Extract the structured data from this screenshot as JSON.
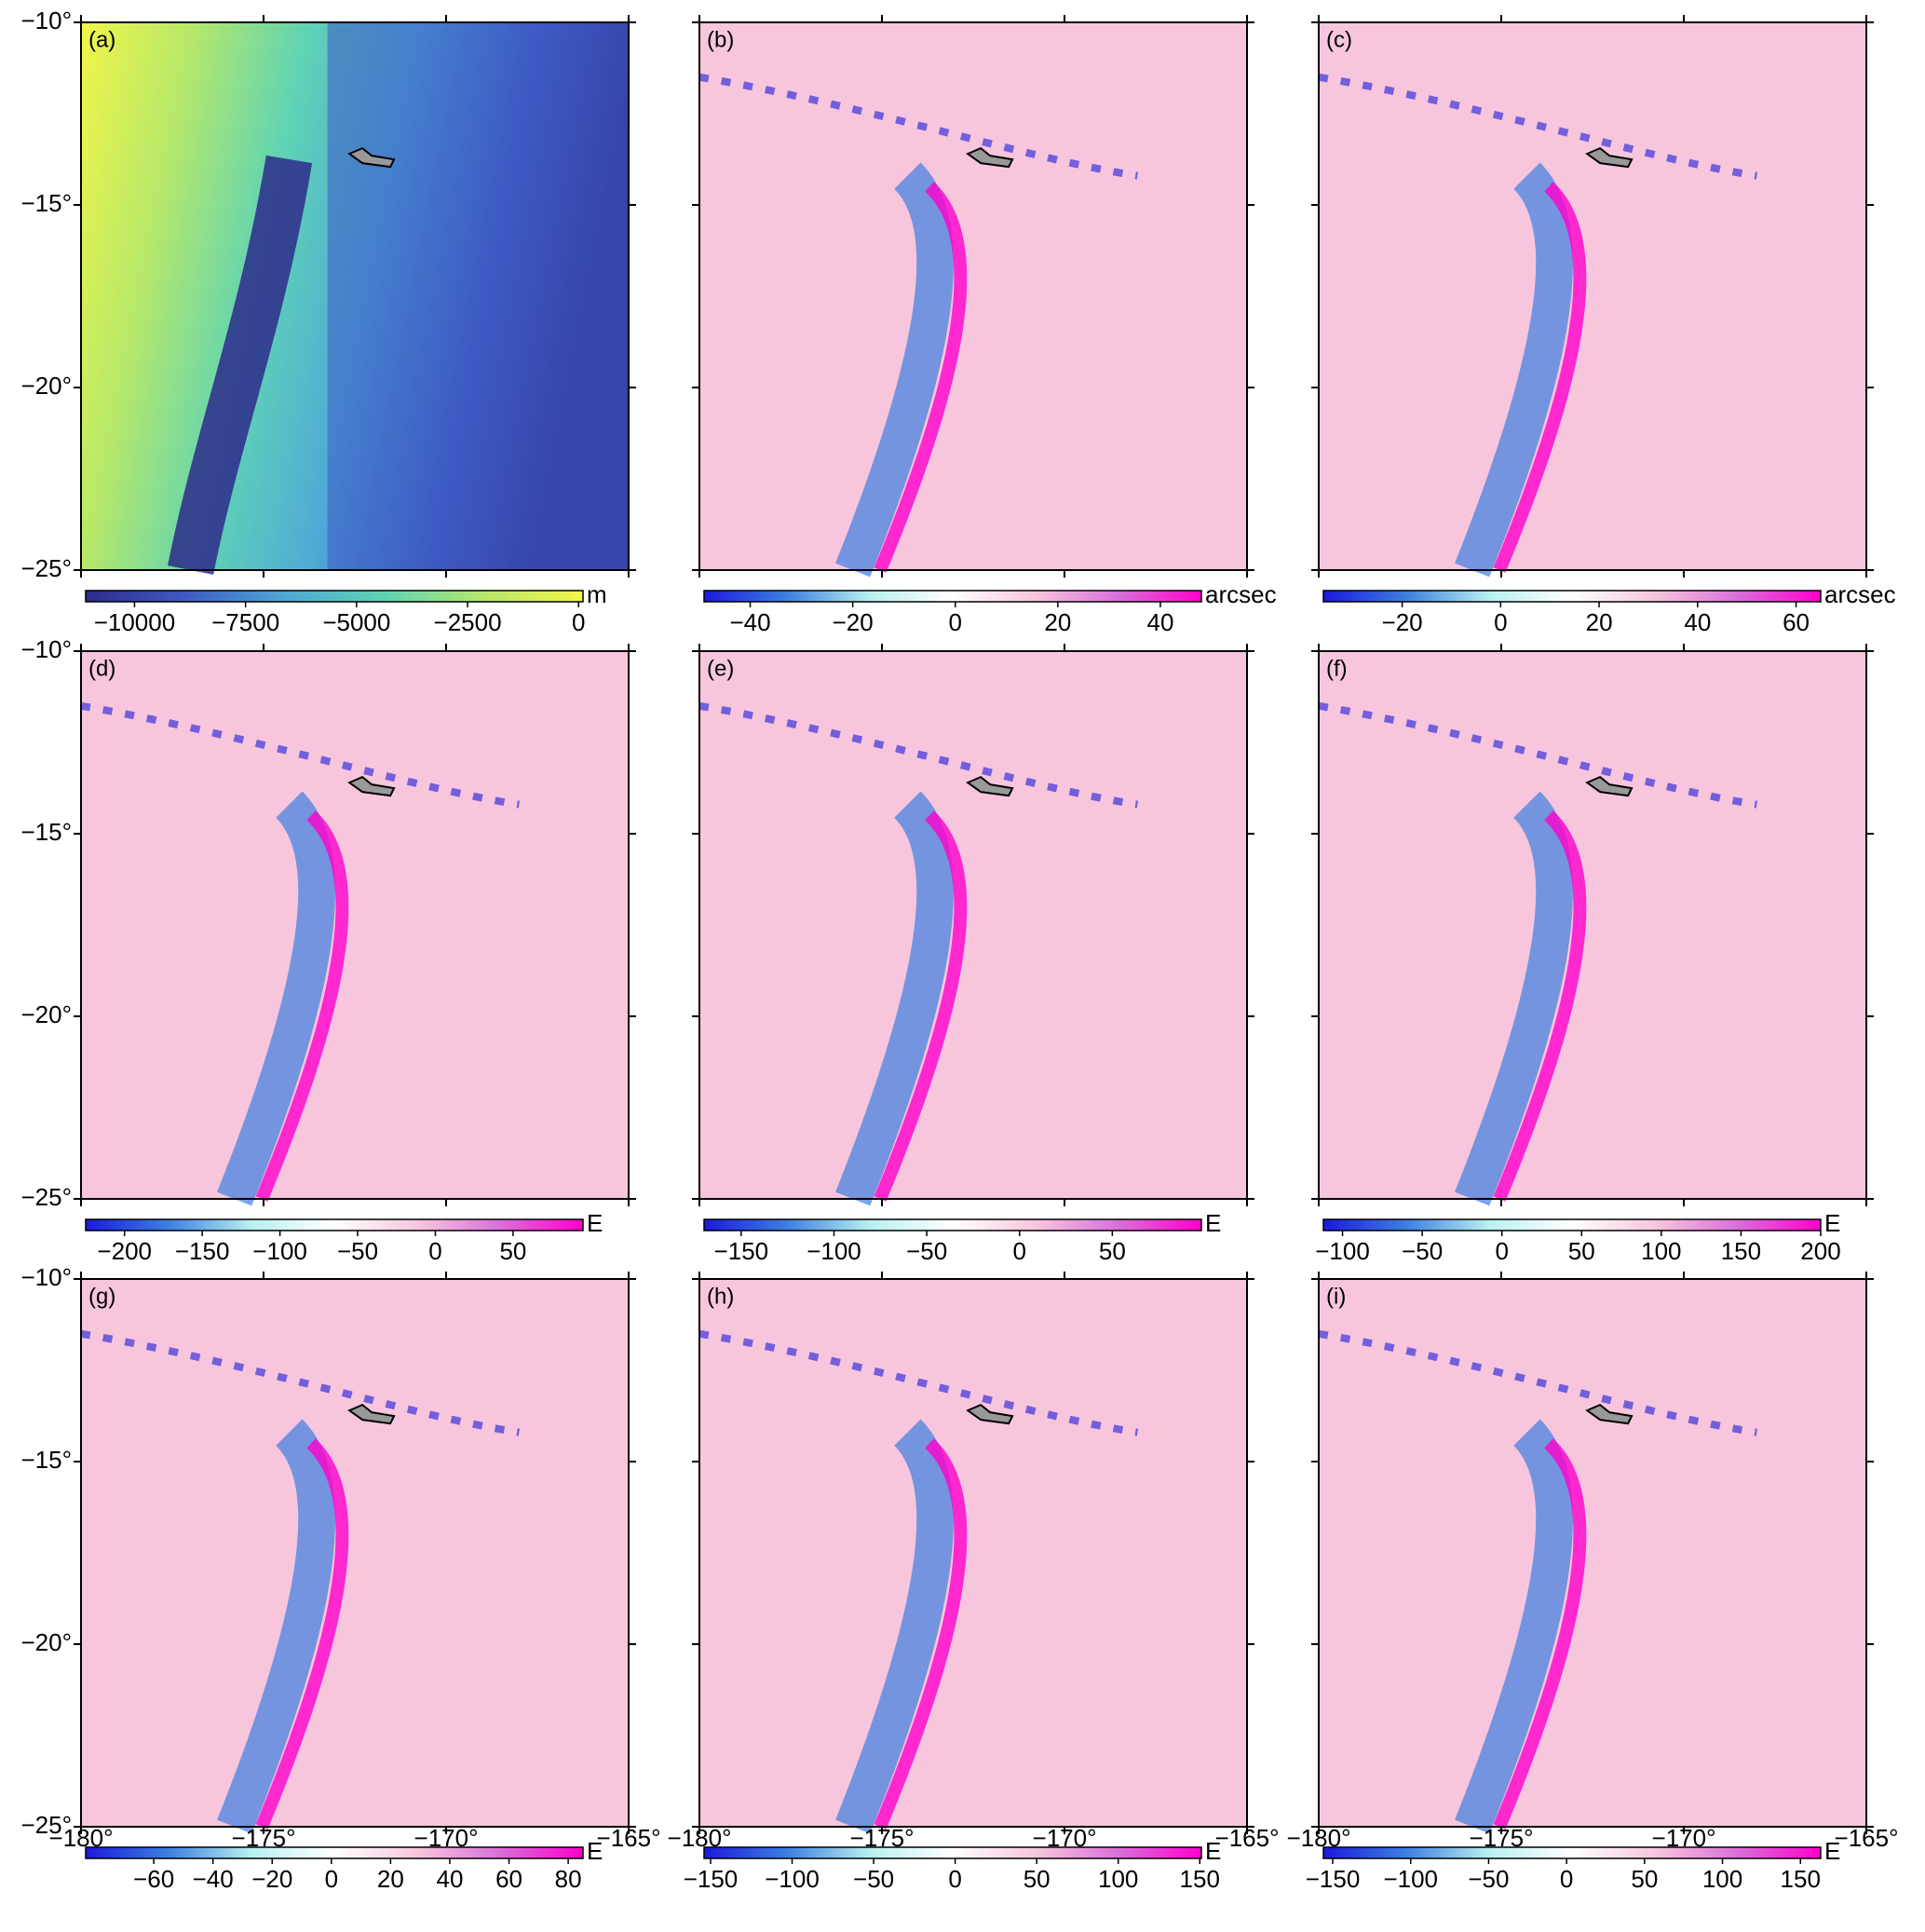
{
  "maps": {
    "ylim": [
      -25,
      -10
    ],
    "xlim": [
      -180,
      -165
    ],
    "lat_ticks": [
      {
        "value": -10,
        "label": "−10°"
      },
      {
        "value": -15,
        "label": "−15°"
      },
      {
        "value": -20,
        "label": "−20°"
      },
      {
        "value": -25,
        "label": "−25°"
      }
    ],
    "lon_ticks": [
      {
        "value": -180,
        "label": "−180°"
      },
      {
        "value": -175,
        "label": "−175°"
      },
      {
        "value": -170,
        "label": "−170°"
      },
      {
        "value": -165,
        "label": "−165°"
      }
    ],
    "panels": [
      {
        "label": "(a)",
        "colorbar": {
          "unit": "m",
          "lim": [
            -11100,
            100
          ],
          "colors": [
            "#2d2a8a",
            "#3e5bc4",
            "#4fa9d6",
            "#5fd3b5",
            "#b5e86a",
            "#f2f54a"
          ],
          "ticks": [
            {
              "value": -10000,
              "label": "−10000"
            },
            {
              "value": -7500,
              "label": "−7500"
            },
            {
              "value": -5000,
              "label": "−5000"
            },
            {
              "value": -2500,
              "label": "−2500"
            },
            0
          ]
        }
      },
      {
        "label": "(b)",
        "colorbar": {
          "unit": "arcsec",
          "lim": [
            -49,
            48
          ],
          "colors": [
            "#1a1adb",
            "#3d7fe0",
            "#b8f0f0",
            "#ffffff",
            "#f7c6dd",
            "#d96fd9",
            "#ff00cc"
          ],
          "ticks": [
            {
              "value": -40,
              "label": "−40"
            },
            {
              "value": -20,
              "label": "−20"
            },
            0,
            20,
            40
          ]
        }
      },
      {
        "label": "(c)",
        "colorbar": {
          "unit": "arcsec",
          "lim": [
            -36,
            65
          ],
          "colors": [
            "#1a1adb",
            "#3d7fe0",
            "#b8f0f0",
            "#ffffff",
            "#f7c6dd",
            "#d96fd9",
            "#ff00cc"
          ],
          "ticks": [
            {
              "value": -20,
              "label": "−20"
            },
            0,
            20,
            40,
            60
          ]
        }
      },
      {
        "label": "(d)",
        "colorbar": {
          "unit": "E",
          "lim": [
            -225,
            95
          ],
          "colors": [
            "#1a1adb",
            "#3d7fe0",
            "#b8f0f0",
            "#ffffff",
            "#f7c6dd",
            "#d96fd9",
            "#ff00cc"
          ],
          "ticks": [
            {
              "value": -200,
              "label": "−200"
            },
            {
              "value": -150,
              "label": "−150"
            },
            {
              "value": -100,
              "label": "−100"
            },
            {
              "value": -50,
              "label": "−50"
            },
            0,
            50
          ]
        }
      },
      {
        "label": "(e)",
        "colorbar": {
          "unit": "E",
          "lim": [
            -170,
            98
          ],
          "colors": [
            "#1a1adb",
            "#3d7fe0",
            "#b8f0f0",
            "#ffffff",
            "#f7c6dd",
            "#d96fd9",
            "#ff00cc"
          ],
          "ticks": [
            {
              "value": -150,
              "label": "−150"
            },
            {
              "value": -100,
              "label": "−100"
            },
            {
              "value": -50,
              "label": "−50"
            },
            0,
            50
          ]
        }
      },
      {
        "label": "(f)",
        "colorbar": {
          "unit": "E",
          "lim": [
            -112,
            200
          ],
          "colors": [
            "#1a1adb",
            "#3d7fe0",
            "#b8f0f0",
            "#ffffff",
            "#f7c6dd",
            "#d96fd9",
            "#ff00cc"
          ],
          "ticks": [
            {
              "value": -100,
              "label": "−100"
            },
            {
              "value": -50,
              "label": "−50"
            },
            0,
            50,
            100,
            150,
            200
          ]
        }
      },
      {
        "label": "(g)",
        "colorbar": {
          "unit": "E",
          "lim": [
            -83,
            85
          ],
          "colors": [
            "#1a1adb",
            "#3d7fe0",
            "#b8f0f0",
            "#ffffff",
            "#f7c6dd",
            "#d96fd9",
            "#ff00cc"
          ],
          "ticks": [
            {
              "value": -60,
              "label": "−60"
            },
            {
              "value": -40,
              "label": "−40"
            },
            {
              "value": -20,
              "label": "−20"
            },
            0,
            20,
            40,
            60,
            80
          ]
        }
      },
      {
        "label": "(h)",
        "colorbar": {
          "unit": "E",
          "lim": [
            -154,
            151
          ],
          "colors": [
            "#1a1adb",
            "#3d7fe0",
            "#b8f0f0",
            "#ffffff",
            "#f7c6dd",
            "#d96fd9",
            "#ff00cc"
          ],
          "ticks": [
            {
              "value": -150,
              "label": "−150"
            },
            {
              "value": -100,
              "label": "−100"
            },
            {
              "value": -50,
              "label": "−50"
            },
            0,
            50,
            100,
            150
          ]
        }
      },
      {
        "label": "(i)",
        "colorbar": {
          "unit": "E",
          "lim": [
            -156,
            163
          ],
          "colors": [
            "#1a1adb",
            "#3d7fe0",
            "#b8f0f0",
            "#ffffff",
            "#f7c6dd",
            "#d96fd9",
            "#ff00cc"
          ],
          "ticks": [
            {
              "value": -150,
              "label": "−150"
            },
            {
              "value": -100,
              "label": "−100"
            },
            {
              "value": -50,
              "label": "−50"
            },
            0,
            50,
            100,
            150
          ]
        }
      }
    ]
  }
}
